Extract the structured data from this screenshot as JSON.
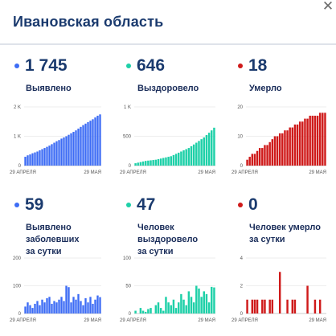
{
  "region_title": "Ивановская область",
  "close_glyph": "✕",
  "colors": {
    "blue": "#3d6cf5",
    "teal": "#1ed0a8",
    "red": "#cf1a1a",
    "text": "#1a3a6e"
  },
  "cards": [
    {
      "value": "1 745",
      "label": [
        "Выявлено"
      ],
      "color": "blue",
      "chart_data": {
        "type": "bar",
        "x_start": "29 АПРЕЛЯ",
        "x_end": "29 МАЯ",
        "y_ticks": [
          "2 K",
          "1 K",
          "0"
        ],
        "ylim": [
          0,
          2000
        ],
        "values": [
          300,
          350,
          380,
          420,
          450,
          480,
          520,
          560,
          600,
          640,
          680,
          730,
          780,
          830,
          870,
          920,
          960,
          1000,
          1050,
          1100,
          1150,
          1200,
          1260,
          1320,
          1380,
          1430,
          1480,
          1530,
          1580,
          1640,
          1700,
          1745
        ]
      }
    },
    {
      "value": "646",
      "label": [
        "Выздоровело"
      ],
      "color": "teal",
      "chart_data": {
        "type": "bar",
        "x_start": "29 АПРЕЛЯ",
        "x_end": "29 МАЯ",
        "y_ticks": [
          "1 K",
          "500",
          "0"
        ],
        "ylim": [
          0,
          1000
        ],
        "values": [
          40,
          50,
          60,
          70,
          80,
          85,
          90,
          95,
          100,
          110,
          120,
          130,
          140,
          150,
          160,
          180,
          200,
          220,
          240,
          260,
          280,
          300,
          330,
          360,
          390,
          420,
          450,
          480,
          520,
          560,
          600,
          646
        ]
      }
    },
    {
      "value": "18",
      "label": [
        "Умерло"
      ],
      "color": "red",
      "chart_data": {
        "type": "bar",
        "x_start": "29 АПРЕЛЯ",
        "x_end": "29 МАЯ",
        "y_ticks": [
          "20",
          "10",
          "0"
        ],
        "ylim": [
          0,
          20
        ],
        "values": [
          2,
          3,
          4,
          4,
          5,
          6,
          6,
          7,
          7,
          8,
          9,
          10,
          10,
          11,
          11,
          12,
          12,
          13,
          13,
          14,
          14,
          15,
          15,
          16,
          16,
          17,
          17,
          17,
          17,
          18,
          18,
          18
        ]
      }
    },
    {
      "value": "59",
      "label": [
        "Выявлено заболевших",
        "за сутки"
      ],
      "color": "blue",
      "chart_data": {
        "type": "bar",
        "x_start": "29 АПРЕЛЯ",
        "x_end": "29 МАЯ",
        "y_ticks": [
          "200",
          "100",
          "0"
        ],
        "ylim": [
          0,
          200
        ],
        "values": [
          25,
          40,
          30,
          20,
          35,
          45,
          30,
          50,
          40,
          55,
          60,
          35,
          45,
          40,
          50,
          60,
          45,
          100,
          95,
          40,
          60,
          50,
          70,
          45,
          30,
          55,
          40,
          60,
          35,
          50,
          65,
          59
        ]
      }
    },
    {
      "value": "47",
      "label": [
        "Человек выздоровело",
        "за сутки"
      ],
      "color": "teal",
      "chart_data": {
        "type": "bar",
        "x_start": "29 АПРЕЛЯ",
        "x_end": "29 МАЯ",
        "y_ticks": [
          "100",
          "50",
          "0"
        ],
        "ylim": [
          0,
          100
        ],
        "values": [
          5,
          0,
          10,
          5,
          3,
          8,
          10,
          0,
          15,
          20,
          10,
          5,
          30,
          20,
          15,
          25,
          10,
          20,
          35,
          25,
          15,
          40,
          30,
          20,
          50,
          45,
          30,
          40,
          35,
          20,
          48,
          47
        ]
      }
    },
    {
      "value": "0",
      "label": [
        "Человек умерло",
        "за сутки"
      ],
      "color": "red",
      "chart_data": {
        "type": "bar",
        "x_start": "29 АПРЕЛЯ",
        "x_end": "29 МАЯ",
        "y_ticks": [
          "4",
          "2",
          "0"
        ],
        "ylim": [
          0,
          4
        ],
        "values": [
          1,
          0,
          1,
          1,
          1,
          0,
          1,
          1,
          0,
          1,
          1,
          0,
          0,
          3,
          0,
          0,
          1,
          0,
          1,
          1,
          0,
          0,
          0,
          0,
          2,
          0,
          0,
          1,
          0,
          1,
          0,
          0
        ]
      }
    }
  ]
}
